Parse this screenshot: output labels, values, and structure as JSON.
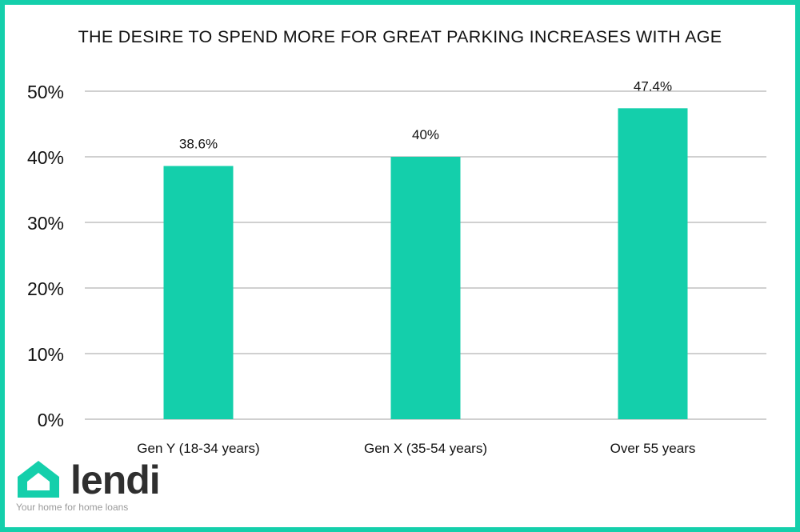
{
  "chart_data": {
    "type": "bar",
    "title": "THE DESIRE TO SPEND MORE FOR GREAT PARKING INCREASES WITH AGE",
    "categories": [
      "Gen Y (18-34 years)",
      "Gen X (35-54 years)",
      "Over 55 years"
    ],
    "values": [
      38.6,
      40,
      47.4
    ],
    "data_labels": [
      "38.6%",
      "40%",
      "47.4%"
    ],
    "ylim": [
      0,
      50
    ],
    "yticks": [
      0,
      10,
      20,
      30,
      40,
      50
    ],
    "ytick_labels": [
      "0%",
      "10%",
      "20%",
      "30%",
      "40%",
      "50%"
    ],
    "xlabel": "",
    "ylabel": "",
    "grid": true,
    "bar_color": "#14cfab",
    "grid_color": "#b3b3b3"
  },
  "brand": {
    "name": "lendi",
    "tagline": "Your home for home loans",
    "accent_color": "#14cfab",
    "frame_color": "#14cfab"
  }
}
